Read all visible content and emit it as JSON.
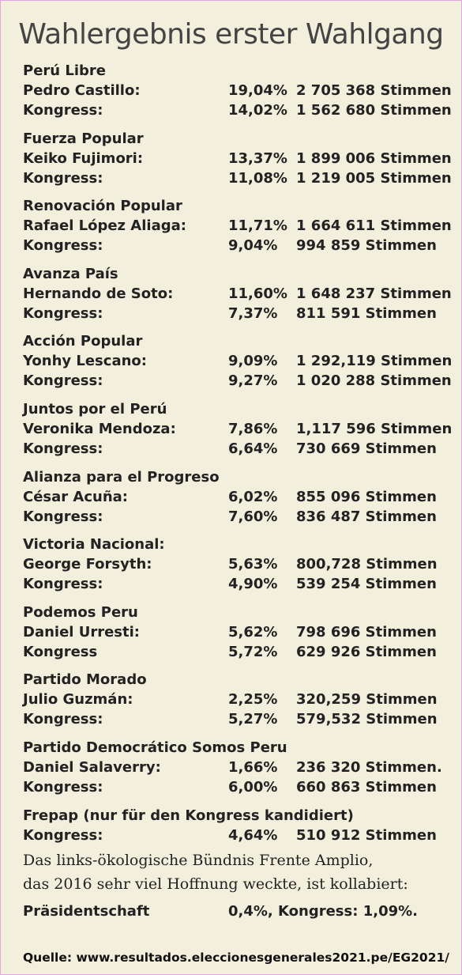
{
  "title": "Wahlergebnis erster Wahlgang",
  "parties": [
    {
      "name": "Perú Libre",
      "rows": [
        {
          "label": "Pedro Castillo:",
          "pct": "19,04%",
          "votes": "2 705 368 Stimmen"
        },
        {
          "label": "Kongress:",
          "pct": "14,02%",
          "votes": "1 562 680 Stimmen"
        }
      ]
    },
    {
      "name": "Fuerza Popular",
      "rows": [
        {
          "label": "Keiko Fujimori:",
          "pct": "13,37%",
          "votes": "1 899 006 Stimmen"
        },
        {
          "label": "Kongress:",
          "pct": "11,08%",
          "votes": "1 219 005 Stimmen"
        }
      ]
    },
    {
      "name": "Renovación Popular",
      "rows": [
        {
          "label": "Rafael López Aliaga:",
          "pct": "11,71%",
          "votes": "1 664 611 Stimmen"
        },
        {
          "label": "Kongress:",
          "pct": "9,04%",
          "votes": "994 859 Stimmen"
        }
      ]
    },
    {
      "name": "Avanza País",
      "rows": [
        {
          "label": "Hernando de Soto:",
          "pct": "11,60%",
          "votes": "1 648 237 Stimmen"
        },
        {
          "label": "Kongress:",
          "pct": "7,37%",
          "votes": "811 591 Stimmen"
        }
      ]
    },
    {
      "name": "Acción Popular",
      "rows": [
        {
          "label": "Yonhy Lescano:",
          "pct": "9,09%",
          "votes": "1 292,119 Stimmen"
        },
        {
          "label": "Kongress:",
          "pct": "9,27%",
          "votes": "1 020 288 Stimmen"
        }
      ]
    },
    {
      "name": "Juntos por el Perú",
      "rows": [
        {
          "label": "Veronika Mendoza:",
          "pct": "7,86%",
          "votes": "1,117 596 Stimmen"
        },
        {
          "label": "Kongress:",
          "pct": "6,64%",
          "votes": "730 669 Stimmen"
        }
      ]
    },
    {
      "name": "Alianza para el Progreso",
      "rows": [
        {
          "label": "César Acuña:",
          "pct": "6,02%",
          "votes": "855 096 Stimmen"
        },
        {
          "label": "Kongress:",
          "pct": "7,60%",
          "votes": "836 487 Stimmen"
        }
      ]
    },
    {
      "name": "Victoria Nacional:",
      "rows": [
        {
          "label": "George Forsyth:",
          "pct": "5,63%",
          "votes": "800,728 Stimmen"
        },
        {
          "label": "Kongress:",
          "pct": "4,90%",
          "votes": "539 254 Stimmen"
        }
      ]
    },
    {
      "name": "Podemos Peru",
      "rows": [
        {
          "label": "Daniel Urresti:",
          "pct": "5,62%",
          "votes": "798 696 Stimmen"
        },
        {
          "label": "Kongress",
          "pct": "5,72%",
          "votes": "629 926 Stimmen"
        }
      ]
    },
    {
      "name": "Partido Morado",
      "rows": [
        {
          "label": "Julio Guzmán:",
          "pct": "2,25%",
          "votes": "320,259 Stimmen"
        },
        {
          "label": "Kongress:",
          "pct": "5,27%",
          "votes": "579,532 Stimmen"
        }
      ]
    },
    {
      "name": "Partido Democrático Somos Peru",
      "rows": [
        {
          "label": "Daniel Salaverry:",
          "pct": "1,66%",
          "votes": "236 320 Stimmen."
        },
        {
          "label": "Kongress:",
          "pct": "6,00%",
          "votes": "660 863 Stimmen"
        }
      ]
    },
    {
      "name": "Frepap (nur für den Kongress kandidiert)",
      "rows": [
        {
          "label": "Kongress:",
          "pct": "4,64%",
          "votes": "510 912 Stimmen"
        }
      ]
    }
  ],
  "note": {
    "line1": "Das links-ökologische Bündnis Frente Amplio,",
    "line2": "das 2016 sehr viel Hoffnung weckte, ist kollabiert:"
  },
  "praesidentschaft": {
    "label": "Präsidentschaft",
    "value": "0,4%, Kongress: 1,09%."
  },
  "source": "Quelle: www.resultados.eleccionesgenerales2021.pe/EG2021/"
}
